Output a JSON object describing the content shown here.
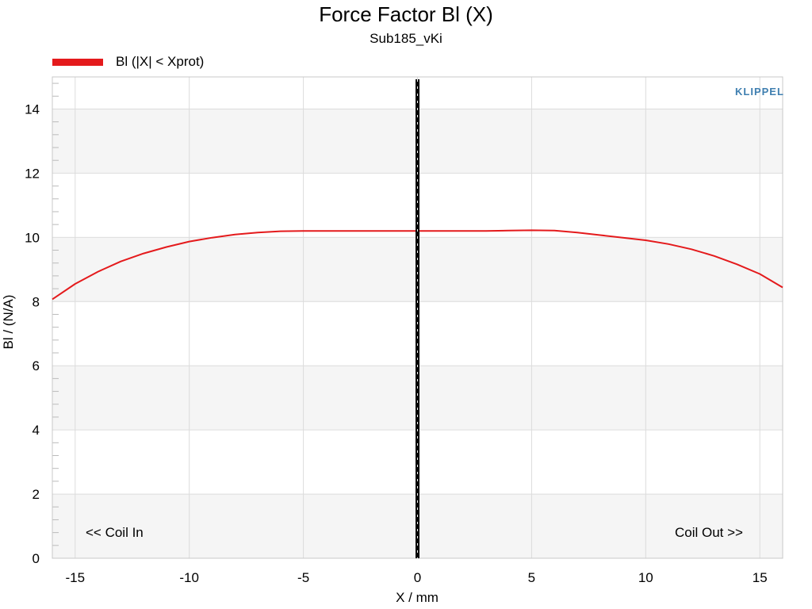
{
  "chart_data": {
    "type": "line",
    "title": "Force Factor Bl (X)",
    "subtitle": "Sub185_vKi",
    "xlabel": "X / mm",
    "ylabel": "Bl / (N/A)",
    "xlim": [
      -16,
      16
    ],
    "ylim": [
      0,
      15
    ],
    "x_ticks": [
      -15,
      -10,
      -5,
      0,
      5,
      10,
      15
    ],
    "y_ticks": [
      0,
      2,
      4,
      6,
      8,
      10,
      12,
      14
    ],
    "grid": true,
    "legend_position": "top-left",
    "series": [
      {
        "name": "Bl (|X| < Xprot)",
        "color": "#e41a1c",
        "x": [
          -16,
          -15,
          -14,
          -13,
          -12,
          -11,
          -10,
          -9,
          -8,
          -7,
          -6,
          -5,
          -4,
          -3,
          -2,
          -1,
          0,
          1,
          2,
          3,
          4,
          5,
          6,
          7,
          8,
          9,
          10,
          11,
          12,
          13,
          14,
          15,
          16
        ],
        "y": [
          8.07,
          8.55,
          8.93,
          9.25,
          9.5,
          9.7,
          9.87,
          9.99,
          10.09,
          10.15,
          10.19,
          10.2,
          10.2,
          10.2,
          10.2,
          10.2,
          10.2,
          10.2,
          10.2,
          10.2,
          10.21,
          10.22,
          10.21,
          10.15,
          10.07,
          9.99,
          9.91,
          9.79,
          9.63,
          9.42,
          9.16,
          8.86,
          8.44
        ]
      }
    ],
    "annotations": {
      "left": "<< Coil In",
      "right": "Coil Out >>",
      "vertical_marker_x": 0
    }
  },
  "watermark": "KLIPPEL",
  "colors": {
    "band": "#f5f5f5",
    "grid": "#dcdcdc",
    "curve": "#e41a1c",
    "marker": "#000000"
  }
}
